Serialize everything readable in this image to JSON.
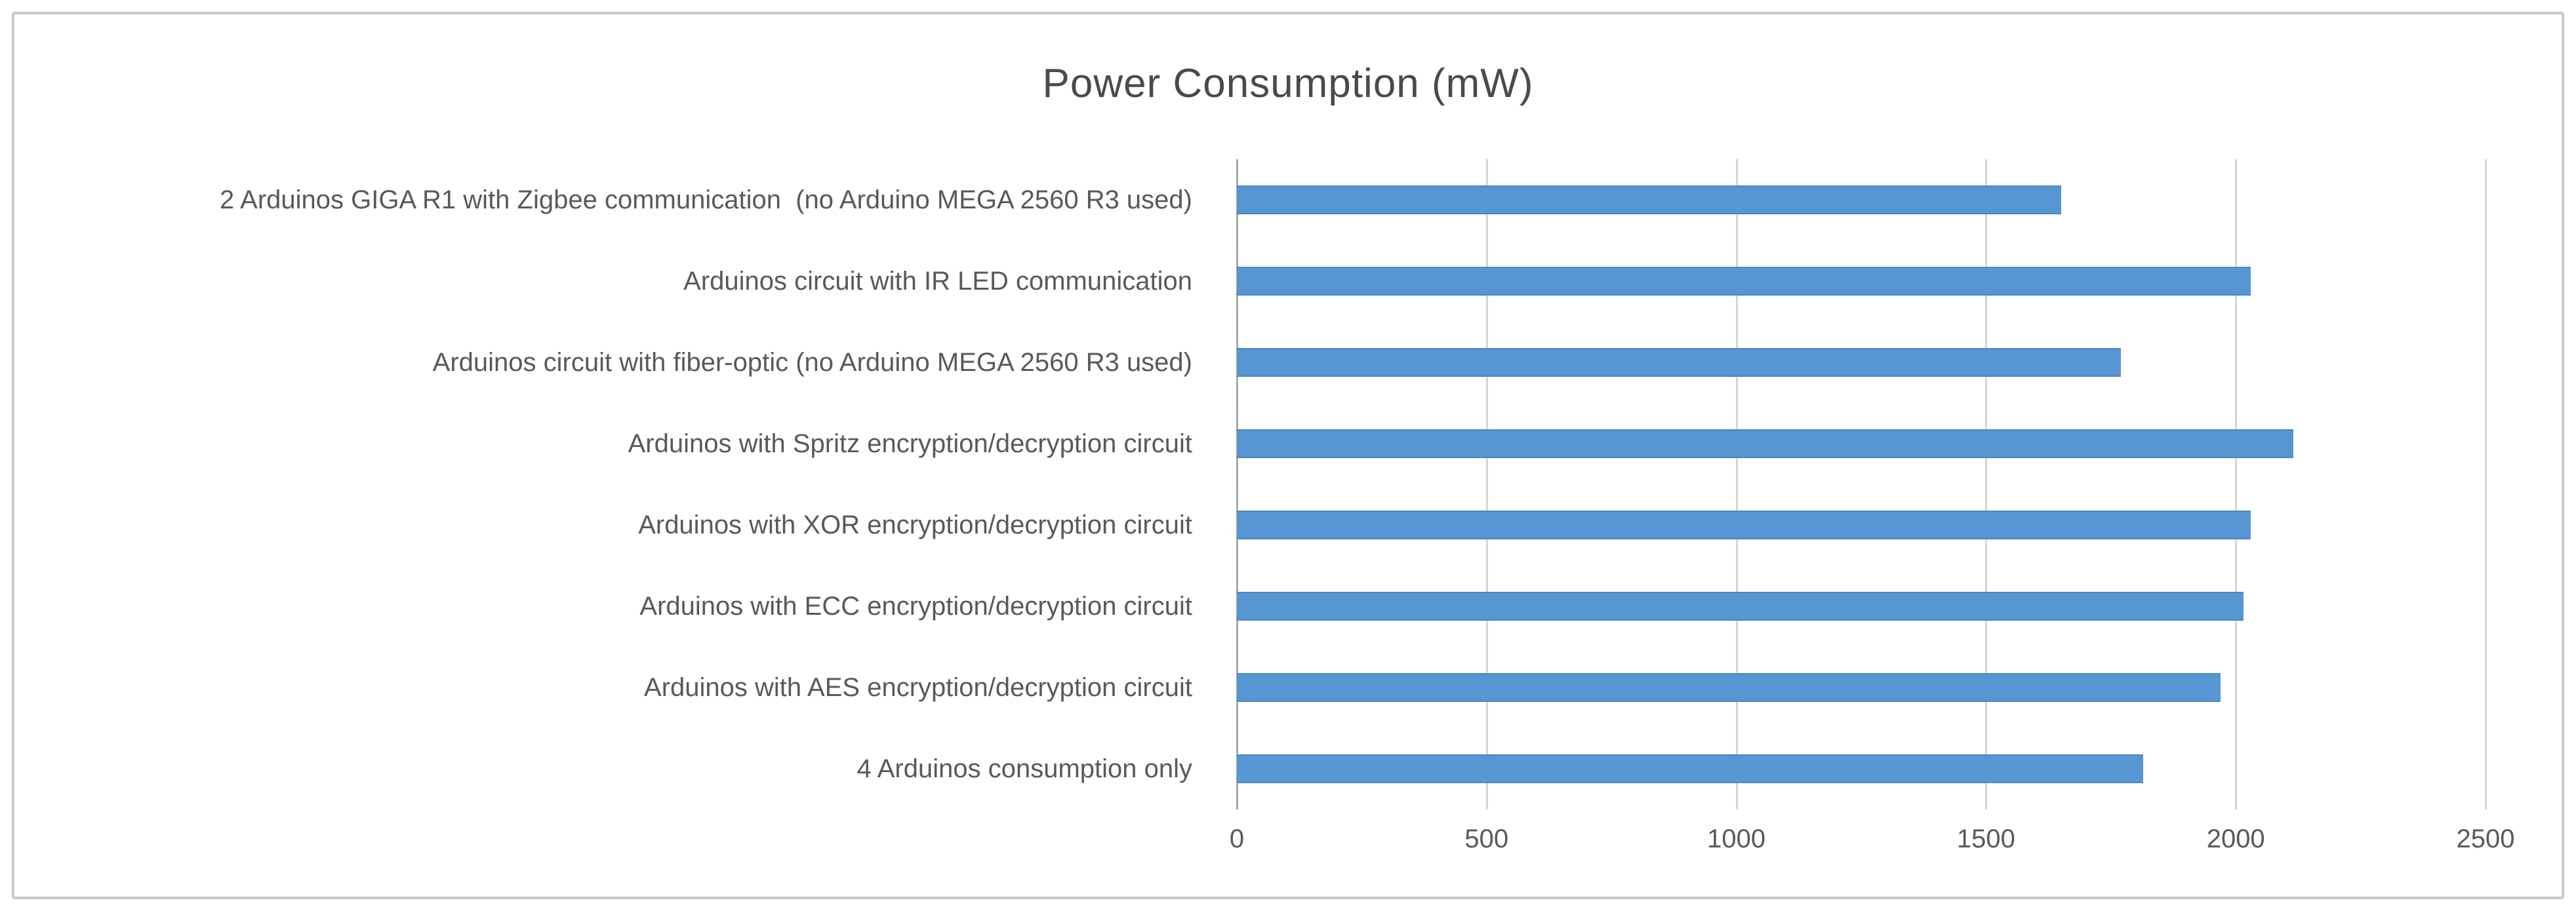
{
  "chart_data": {
    "type": "bar",
    "orientation": "horizontal",
    "title": "Power Consumption (mW)",
    "categories": [
      "2 Arduinos GIGA R1 with Zigbee communication  (no Arduino MEGA 2560 R3 used)",
      "Arduinos circuit with IR LED communication",
      "Arduinos circuit with fiber-optic (no Arduino MEGA 2560 R3 used)",
      "Arduinos with Spritz encryption/decryption circuit",
      "Arduinos with XOR encryption/decryption circuit",
      "Arduinos with ECC encryption/decryption circuit",
      "Arduinos with AES encryption/decryption circuit",
      "4 Arduinos consumption only"
    ],
    "values": [
      1650,
      2030,
      1770,
      2115,
      2030,
      2015,
      1970,
      1815
    ],
    "xlabel": "",
    "ylabel": "",
    "xlim": [
      0,
      2500
    ],
    "x_ticks": [
      0,
      500,
      1000,
      1500,
      2000,
      2500
    ],
    "grid": true,
    "legend": "none",
    "bar_color": "#5697d3",
    "gridline_color": "#d6d6d6",
    "axis_line_color": "#a9a9a9",
    "title_color": "#4a4a4a",
    "tick_label_color": "#595959"
  }
}
